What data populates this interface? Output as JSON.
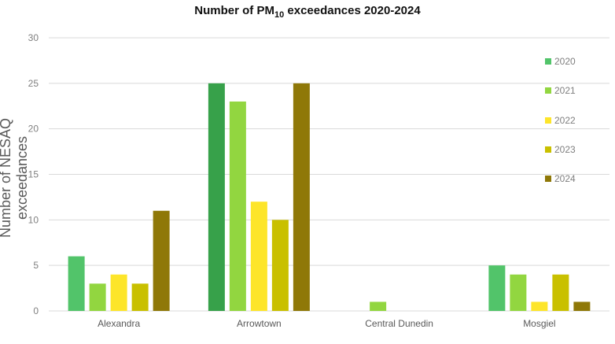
{
  "chart_data": {
    "type": "bar",
    "title_main": "Number of PM",
    "title_sub": "10",
    "title_rest": " exceedances 2020-2024",
    "ylabel": "Number of NESAQ exceedances",
    "xlabel": "",
    "ylim": [
      0,
      30
    ],
    "yticks": [
      "0",
      "5",
      "10",
      "15",
      "20",
      "25",
      "30"
    ],
    "grid": true,
    "legend_position": "right",
    "categories": [
      "Alexandra",
      "Arrowtown",
      "Central Dunedin",
      "Mosgiel"
    ],
    "series": [
      {
        "name": "2020",
        "color": "#52c46a",
        "values": [
          6,
          25,
          0,
          5
        ]
      },
      {
        "name": "2021",
        "color": "#92d640",
        "values": [
          3,
          23,
          1,
          4
        ]
      },
      {
        "name": "2022",
        "color": "#fde52a",
        "values": [
          4,
          12,
          0,
          1
        ]
      },
      {
        "name": "2023",
        "color": "#c9c000",
        "values": [
          3,
          10,
          0,
          4
        ]
      },
      {
        "name": "2024",
        "color": "#8f7808",
        "values": [
          11,
          25,
          0,
          1
        ]
      }
    ],
    "highlight_color": "#37a14a"
  }
}
